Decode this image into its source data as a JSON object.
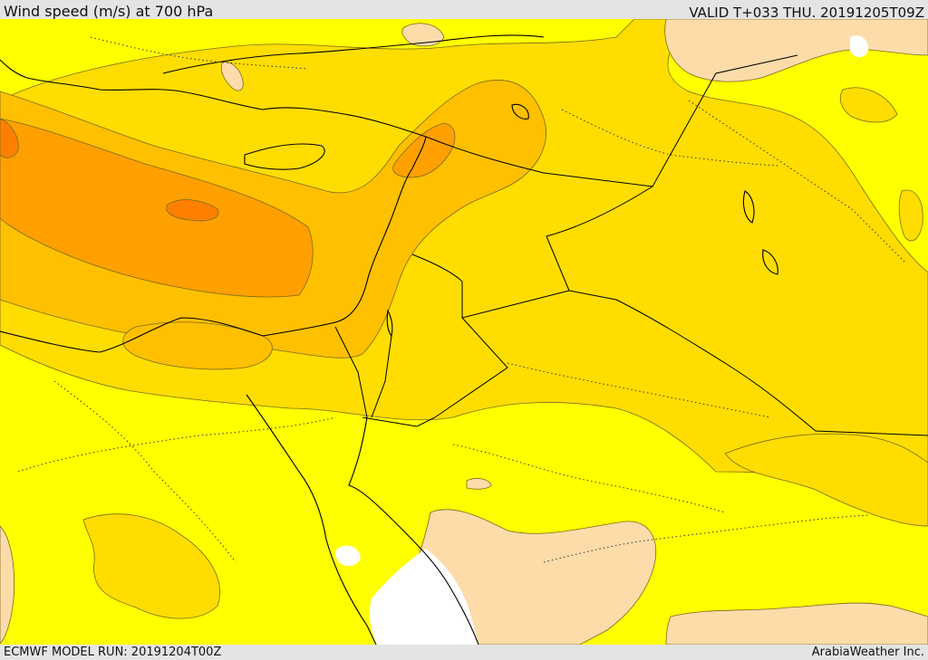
{
  "header": {
    "title": "Wind speed (m/s) at 700 hPa",
    "valid": "VALID T+033 THU. 20191205T09Z"
  },
  "footer": {
    "model_run": "ECMWF MODEL RUN: 20191204T00Z",
    "credit": "ArabiaWeather Inc."
  },
  "colors": {
    "band_lowest": "#ffffff",
    "band_low": "#fddcaa",
    "band_base": "#ffff00",
    "band_mid": "#ffdd00",
    "band_high": "#ffc000",
    "band_higher": "#ffa000",
    "band_max": "#ff8000",
    "coastline": "#000000"
  }
}
